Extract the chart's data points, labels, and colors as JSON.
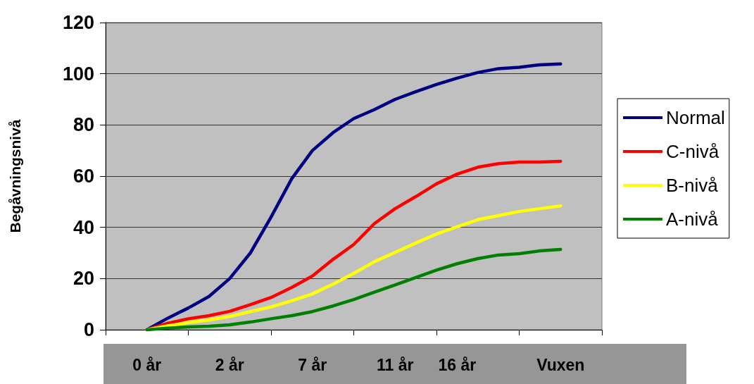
{
  "chart_data": {
    "type": "line",
    "ylabel": "Begåvningsnivå",
    "categories": [
      null,
      null,
      "0 år",
      null,
      null,
      null,
      "2 år",
      null,
      null,
      null,
      "7 år",
      null,
      null,
      null,
      "11 år",
      null,
      null,
      "16 år",
      null,
      null,
      null,
      null,
      "Vuxen",
      null,
      null
    ],
    "series": [
      {
        "name": "Normal",
        "color": "#000080",
        "values": [
          null,
          null,
          0,
          4.5,
          8.5,
          13,
          20,
          30,
          44,
          59,
          70,
          77,
          82.5,
          86,
          90,
          93,
          95.8,
          98.3,
          100.5,
          102,
          102.5,
          103.5,
          103.8,
          null,
          null
        ]
      },
      {
        "name": "C-nivå",
        "color": "#ff0000",
        "values": [
          null,
          null,
          0,
          2.5,
          4.3,
          5.5,
          7.2,
          9.8,
          12.6,
          16.5,
          21,
          27.5,
          33.3,
          41.5,
          47.3,
          52,
          57,
          60.8,
          63.5,
          64.9,
          65.5,
          65.5,
          65.8,
          null,
          null
        ]
      },
      {
        "name": "B-nivå",
        "color": "#ffff00",
        "values": [
          null,
          null,
          0,
          1.5,
          2.8,
          3.8,
          5.2,
          7.1,
          8.9,
          11.3,
          14,
          17.8,
          22,
          26.6,
          30.2,
          33.9,
          37.4,
          40.2,
          43,
          44.6,
          46.2,
          47.3,
          48.4,
          null,
          null
        ]
      },
      {
        "name": "A-nivå",
        "color": "#008000",
        "values": [
          null,
          null,
          0,
          0.6,
          1.1,
          1.4,
          1.9,
          3,
          4.3,
          5.5,
          7.1,
          9.3,
          11.8,
          14.7,
          17.5,
          20.4,
          23.3,
          25.8,
          27.8,
          29.2,
          29.7,
          30.8,
          31.4,
          null,
          null
        ]
      }
    ],
    "ylim": [
      0,
      120
    ],
    "yticks": [
      0,
      20,
      40,
      60,
      80,
      100,
      120
    ],
    "grid": "y",
    "legend": "right",
    "marker": "none",
    "line_style": "solid"
  }
}
